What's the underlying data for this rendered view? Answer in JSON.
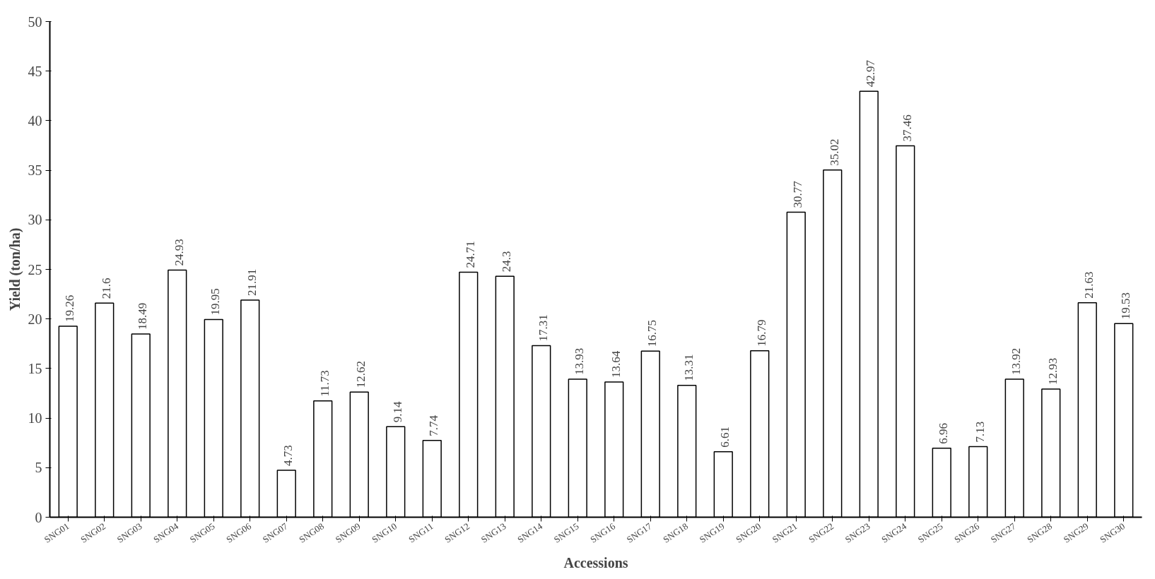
{
  "chart_data": {
    "type": "bar",
    "xlabel": "Accessions",
    "ylabel": "Yield (ton/ha)",
    "categories": [
      "SNG01",
      "SNG02",
      "SNG03",
      "SNG04",
      "SNG05",
      "SNG06",
      "SNG07",
      "SNG08",
      "SNG09",
      "SNG10",
      "SNG11",
      "SNG12",
      "SNG13",
      "SNG14",
      "SNG15",
      "SNG16",
      "SNG17",
      "SNG18",
      "SNG19",
      "SNG20",
      "SNG21",
      "SNG22",
      "SNG23",
      "SNG24",
      "SNG25",
      "SNG26",
      "SNG27",
      "SNG28",
      "SNG29",
      "SNG30"
    ],
    "values": [
      19.26,
      21.6,
      18.49,
      24.93,
      19.95,
      21.91,
      4.73,
      11.73,
      12.62,
      9.14,
      7.74,
      24.71,
      24.3,
      17.31,
      13.93,
      13.64,
      16.75,
      13.31,
      6.61,
      16.79,
      30.77,
      35.02,
      42.97,
      37.46,
      6.96,
      7.13,
      13.92,
      12.93,
      21.63,
      19.53
    ],
    "color": "#ffffff",
    "ylim": [
      0,
      50
    ],
    "yticks": [
      0,
      5,
      10,
      15,
      20,
      25,
      30,
      35,
      40,
      45,
      50
    ],
    "grid": false,
    "data_labels": true
  }
}
